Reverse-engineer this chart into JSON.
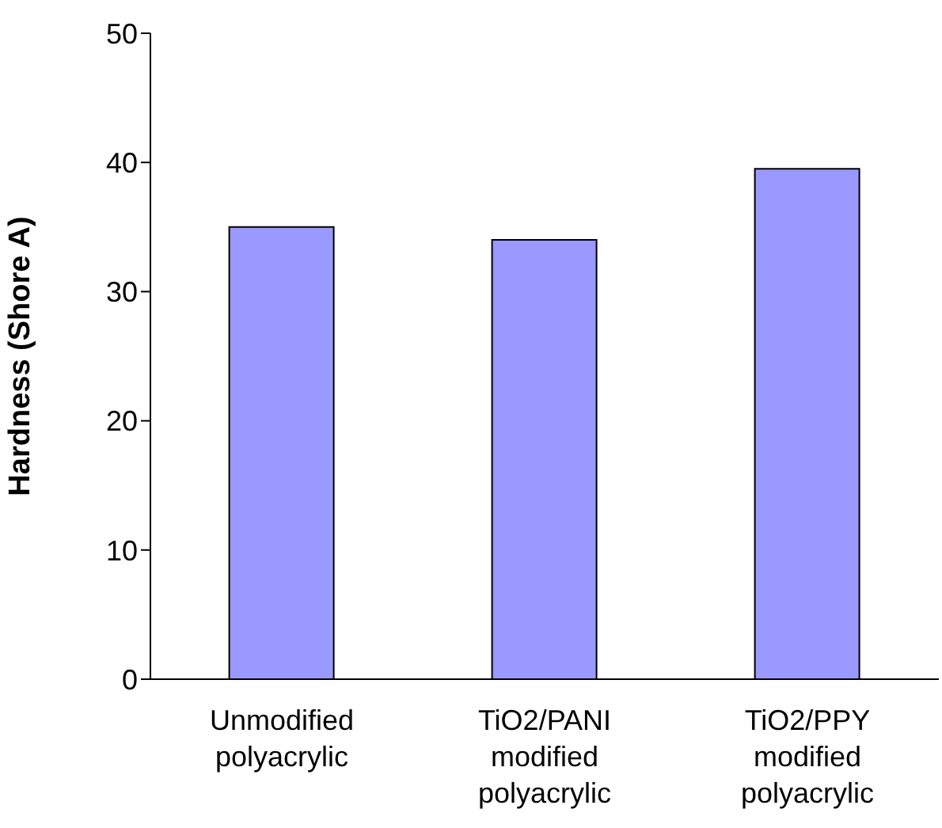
{
  "chart_data": {
    "type": "bar",
    "ylabel": "Hardness (Shore A)",
    "categories": [
      "Unmodified polyacrylic",
      "TiO2/PANI modified polyacrylic",
      "TiO2/PPY modified polyacrylic"
    ],
    "values": [
      35,
      34,
      39.5
    ],
    "color": "#9999ff",
    "ylim": [
      0,
      50
    ],
    "yticks": [
      0,
      10,
      20,
      30,
      40,
      50
    ]
  }
}
